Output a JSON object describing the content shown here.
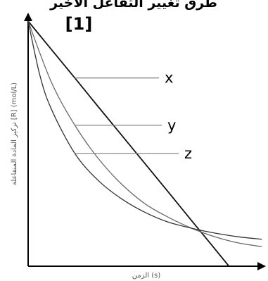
{
  "header": {
    "title_line1": "طرق تغيير التفاعل الأخير",
    "title_line2": "[1]"
  },
  "chart_data": {
    "type": "line",
    "xlabel": "الزمن (s)",
    "ylabel": "تركيز المادة المتفاعلة [R] (mol/L)",
    "xlim": [
      0,
      1
    ],
    "ylim": [
      0,
      1
    ],
    "grid": false,
    "series": [
      {
        "name": "x",
        "x": [
          0,
          0.1,
          0.2,
          0.3,
          0.4,
          0.5,
          0.6,
          0.7,
          0.78,
          0.86
        ],
        "y": [
          1,
          0.884,
          0.768,
          0.651,
          0.535,
          0.419,
          0.303,
          0.186,
          0.093,
          0
        ]
      },
      {
        "name": "y",
        "x": [
          0,
          0.1,
          0.2,
          0.3,
          0.4,
          0.5,
          0.6,
          0.7,
          0.8,
          0.9,
          1
        ],
        "y": [
          1,
          0.75,
          0.575,
          0.44,
          0.335,
          0.255,
          0.2,
          0.155,
          0.12,
          0.095,
          0.08
        ]
      },
      {
        "name": "z",
        "x": [
          0,
          0.05,
          0.1,
          0.2,
          0.3,
          0.4,
          0.5,
          0.6,
          0.7,
          0.8,
          0.9,
          1
        ],
        "y": [
          1,
          0.78,
          0.64,
          0.46,
          0.35,
          0.275,
          0.22,
          0.18,
          0.155,
          0.135,
          0.12,
          0.11
        ]
      }
    ],
    "line_colors": [
      "#111111",
      "#6a6a6a",
      "#333333"
    ],
    "label_points": [
      {
        "series": 0,
        "x": 0.2
      },
      {
        "series": 1,
        "x": 0.2
      },
      {
        "series": 2,
        "x": 0.2
      }
    ]
  }
}
